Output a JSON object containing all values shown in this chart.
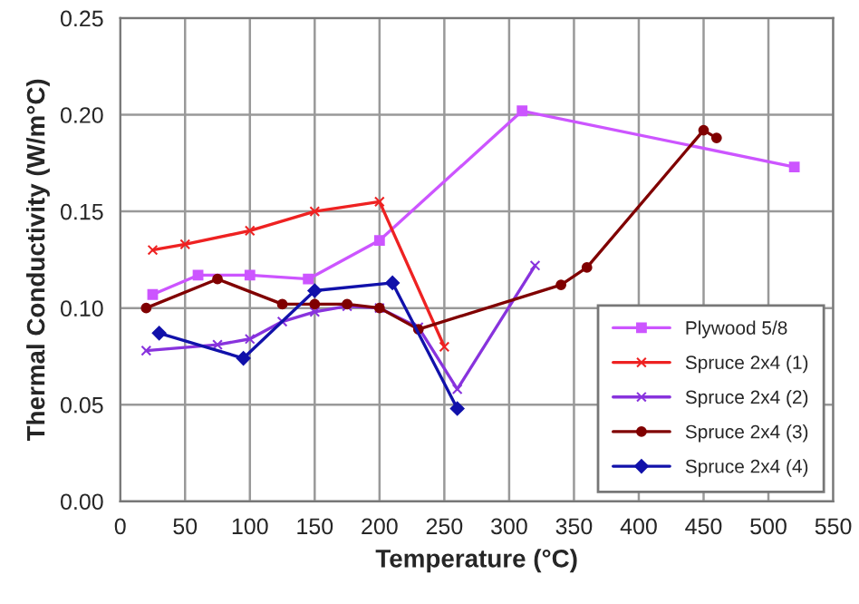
{
  "chart_data": {
    "type": "line",
    "xlabel": "Temperature (°C)",
    "ylabel": "Thermal Conductivity (W/m°C)",
    "xlim": [
      0,
      550
    ],
    "xticks": [
      0,
      50,
      100,
      150,
      200,
      250,
      300,
      350,
      400,
      450,
      500,
      550
    ],
    "ylim": [
      0,
      0.25
    ],
    "yticks": [
      {
        "value": 0,
        "label": "0.00"
      },
      {
        "value": 0.05,
        "label": "0.05"
      },
      {
        "value": 0.1,
        "label": "0.10"
      },
      {
        "value": 0.15,
        "label": "0.15"
      },
      {
        "value": 0.2,
        "label": "0.20"
      },
      {
        "value": 0.25,
        "label": "0.25"
      }
    ],
    "grid": true,
    "legend": "lower right",
    "series": [
      {
        "name": "Plywood 5/8",
        "color": "#cc55ff",
        "marker": "square",
        "x": [
          25,
          60,
          100,
          145,
          200,
          310,
          520
        ],
        "values": [
          0.107,
          0.117,
          0.117,
          0.115,
          0.135,
          0.202,
          0.173
        ]
      },
      {
        "name": "Spruce 2x4 (1)",
        "color": "#ee2222",
        "marker": "cross",
        "x": [
          25,
          50,
          100,
          150,
          200,
          250
        ],
        "values": [
          0.13,
          0.133,
          0.14,
          0.15,
          0.155,
          0.08
        ]
      },
      {
        "name": "Spruce 2x4 (2)",
        "color": "#8833dd",
        "marker": "cross",
        "x": [
          20,
          75,
          100,
          125,
          150,
          175,
          200,
          230,
          260,
          320
        ],
        "values": [
          0.078,
          0.081,
          0.084,
          0.093,
          0.098,
          0.101,
          0.1,
          0.09,
          0.058,
          0.122
        ]
      },
      {
        "name": "Spruce 2x4 (3)",
        "color": "#800000",
        "marker": "circle",
        "x": [
          20,
          75,
          125,
          150,
          175,
          200,
          230,
          340,
          360,
          450,
          460
        ],
        "values": [
          0.1,
          0.115,
          0.102,
          0.102,
          0.102,
          0.1,
          0.089,
          0.112,
          0.121,
          0.192,
          0.188
        ]
      },
      {
        "name": "Spruce 2x4 (4)",
        "color": "#1111aa",
        "marker": "diamond",
        "x": [
          30,
          95,
          150,
          210,
          260
        ],
        "values": [
          0.087,
          0.074,
          0.109,
          0.113,
          0.048
        ]
      }
    ]
  }
}
